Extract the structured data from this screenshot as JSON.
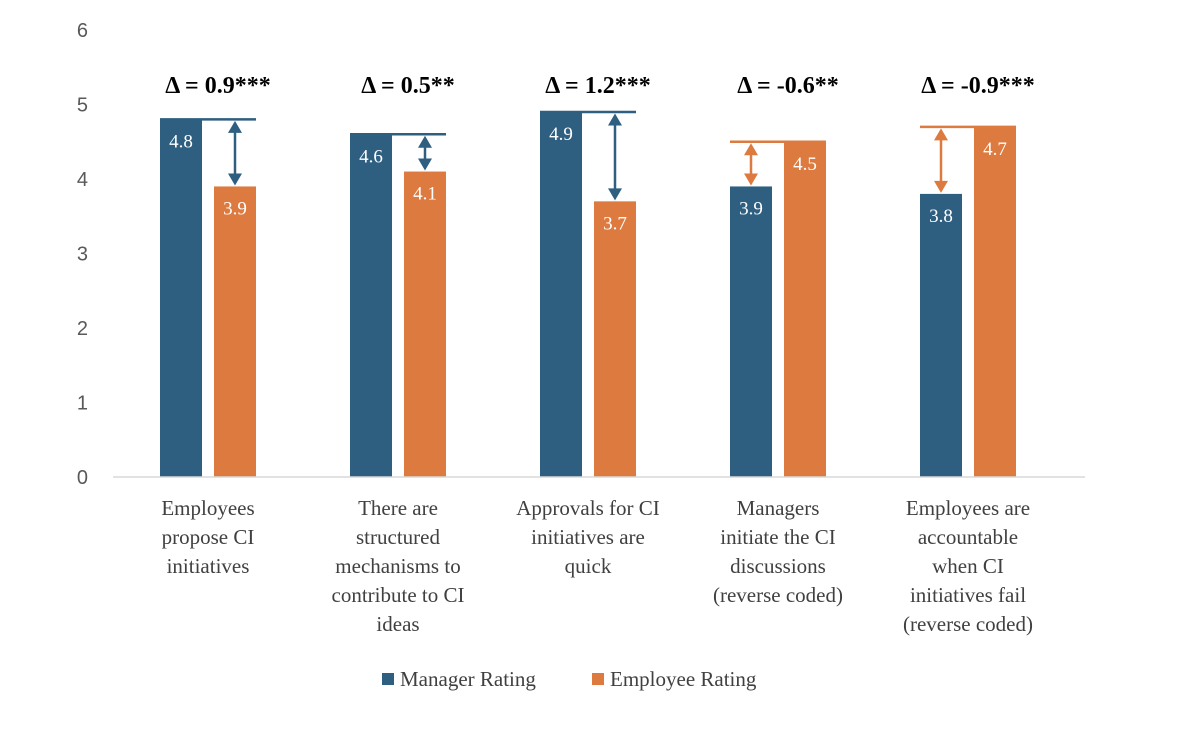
{
  "chart_data": {
    "type": "bar",
    "categories": [
      [
        "Employees",
        "propose CI",
        "initiatives"
      ],
      [
        "There are",
        "structured",
        "mechanisms to",
        "contribute to CI",
        "ideas"
      ],
      [
        "Approvals for CI",
        "initiatives are",
        "quick"
      ],
      [
        "Managers",
        "initiate the CI",
        "discussions",
        "(reverse coded)"
      ],
      [
        "Employees are",
        "accountable",
        "when CI",
        "initiatives fail",
        "(reverse coded)"
      ]
    ],
    "series": [
      {
        "name": "Manager Rating",
        "color": "#2e5f80",
        "values": [
          4.8,
          4.6,
          4.9,
          3.9,
          3.8
        ],
        "labels": [
          "4.8",
          "4.6",
          "4.9",
          "3.9",
          "3.8"
        ]
      },
      {
        "name": "Employee Rating",
        "color": "#dd7a3f",
        "values": [
          3.9,
          4.1,
          3.7,
          4.5,
          4.7
        ],
        "labels": [
          "3.9",
          "4.1",
          "3.7",
          "4.5",
          "4.7"
        ]
      }
    ],
    "deltas": [
      "Δ = 0.9***",
      "Δ = 0.5**",
      "Δ = 1.2***",
      "Δ = -0.6**",
      "Δ = -0.9***"
    ],
    "yticks": [
      "0",
      "1",
      "2",
      "3",
      "4",
      "5",
      "6"
    ],
    "ylim": [
      0,
      6
    ],
    "grid": false,
    "legend_position": "bottom"
  }
}
